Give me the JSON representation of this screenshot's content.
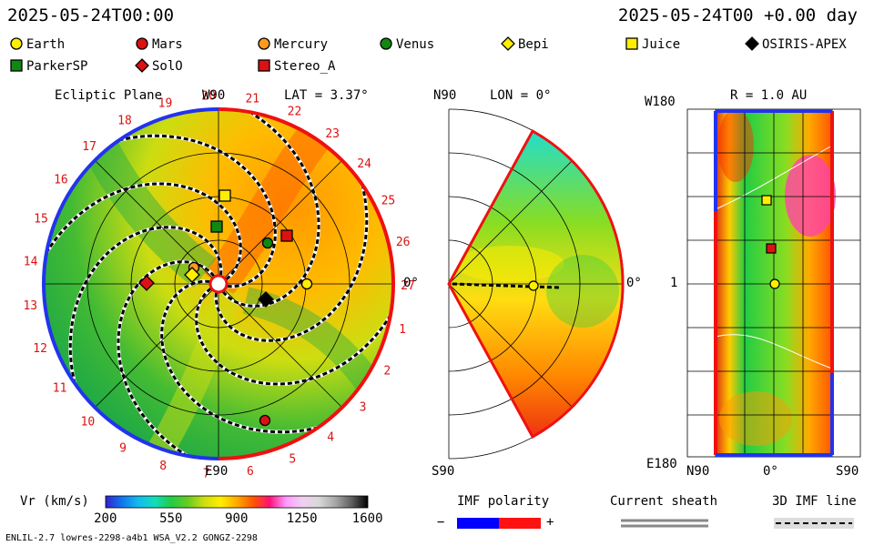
{
  "header": {
    "left": "2025-05-24T00:00",
    "right": "2025-05-24T00 +0.00 day"
  },
  "legend": [
    {
      "label": "Earth",
      "shape": "circle",
      "color": "#ffee00"
    },
    {
      "label": "Mars",
      "shape": "circle",
      "color": "#dd1111"
    },
    {
      "label": "Mercury",
      "shape": "circle",
      "color": "#ff9922"
    },
    {
      "label": "Venus",
      "shape": "circle",
      "color": "#118811"
    },
    {
      "label": "Bepi",
      "shape": "diamond",
      "color": "#ffee00"
    },
    {
      "label": "Juice",
      "shape": "square",
      "color": "#ffee00"
    },
    {
      "label": "OSIRIS-APEX",
      "shape": "diamond",
      "color": "#000000"
    },
    {
      "label": "ParkerSP",
      "shape": "square",
      "color": "#118811"
    },
    {
      "label": "SolO",
      "shape": "diamond",
      "color": "#dd1111"
    },
    {
      "label": "Stereo_A",
      "shape": "square",
      "color": "#dd1111"
    }
  ],
  "ecliptic": {
    "title": "Ecliptic Plane",
    "top_label": "W90",
    "lat": "LAT = 3.37°",
    "right_label": "0°",
    "bottom_label": "E90",
    "rotations": [
      "20",
      "21",
      "22",
      "23",
      "24",
      "25",
      "26",
      "27",
      "1",
      "2",
      "3",
      "4",
      "5",
      "6",
      "7",
      "8",
      "9",
      "10",
      "11",
      "12",
      "13",
      "14",
      "15",
      "16",
      "17",
      "18",
      "19"
    ]
  },
  "meridional": {
    "title": "LON = 0°",
    "top_label": "N90",
    "bottom_label": "S90",
    "right_label": "0°"
  },
  "sphere": {
    "title": "R = 1.0 AU",
    "top_label": "W180",
    "mid_label": "1",
    "bottom_label": "E180",
    "x_left": "N90",
    "x_mid": "0°",
    "x_right": "S90"
  },
  "colorbar": {
    "label": "Vr (km/s)",
    "ticks": [
      "200",
      "550",
      "900",
      "1250",
      "1600"
    ],
    "stops": [
      "#3322cc",
      "#1177ee",
      "#11bbee",
      "#11ddbb",
      "#22cc44",
      "#66cc22",
      "#ccdd11",
      "#ffee00",
      "#ffaa00",
      "#ff5500",
      "#ff1177",
      "#ff99ff",
      "#f0d0f0",
      "#d8d8d8",
      "#a8a8a8",
      "#606060",
      "#000000"
    ]
  },
  "imf": {
    "title": "IMF polarity",
    "minus": "−",
    "plus": "+"
  },
  "sheath": {
    "title": "Current sheath"
  },
  "imf3d": {
    "title": "3D IMF line"
  },
  "footer": {
    "text": "ENLIL-2.7 lowres-2298-a4b1 WSA_V2.2 GONGZ-2298"
  },
  "chart_data": {
    "type": "heliospheric simulation",
    "quantity": "Vr (km/s)",
    "colorbar_range": [
      200,
      1600
    ],
    "ecliptic_objects": [
      "Earth",
      "Mars",
      "Mercury",
      "Venus",
      "Bepi",
      "Juice",
      "OSIRIS-APEX",
      "ParkerSP",
      "SolO",
      "Stereo_A"
    ]
  }
}
